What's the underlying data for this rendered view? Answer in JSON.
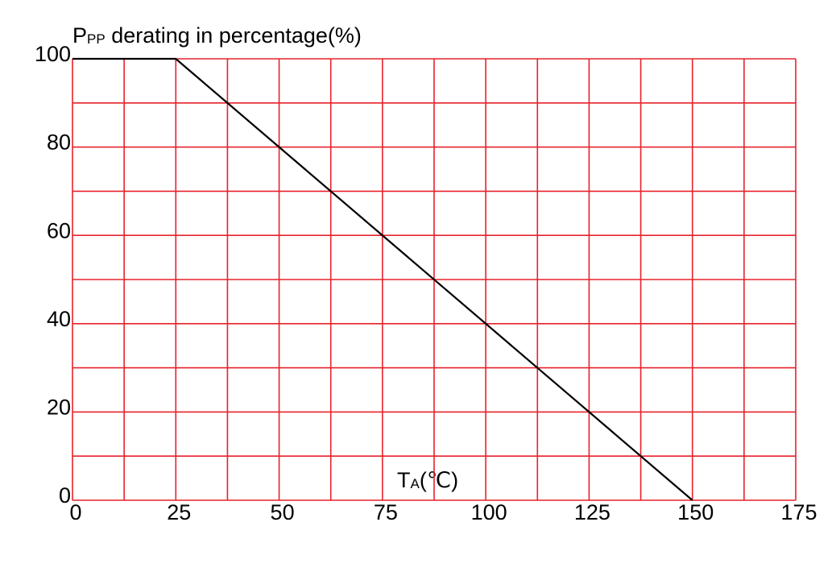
{
  "chart_data": {
    "type": "line",
    "ylabel": {
      "text": "P",
      "subscript": "PP",
      "suffix": " derating in percentage(%)"
    },
    "xlabel": {
      "text": "T",
      "subscript": "A",
      "suffix": "(℃)"
    },
    "x": [
      0,
      25,
      150
    ],
    "values": [
      100,
      100,
      0
    ],
    "color": "#000000",
    "grid_color": "#e8222b",
    "xlim": [
      0,
      175
    ],
    "ylim": [
      0,
      100
    ],
    "xticks": [
      0,
      25,
      50,
      75,
      100,
      125,
      150,
      175
    ],
    "yticks": [
      0,
      20,
      40,
      60,
      80,
      100
    ],
    "x_minor_ticks": [
      12.5,
      37.5,
      62.5,
      87.5,
      112.5,
      137.5,
      162.5
    ],
    "y_minor_ticks": [
      10,
      30,
      50,
      70,
      90
    ],
    "grid": true
  }
}
